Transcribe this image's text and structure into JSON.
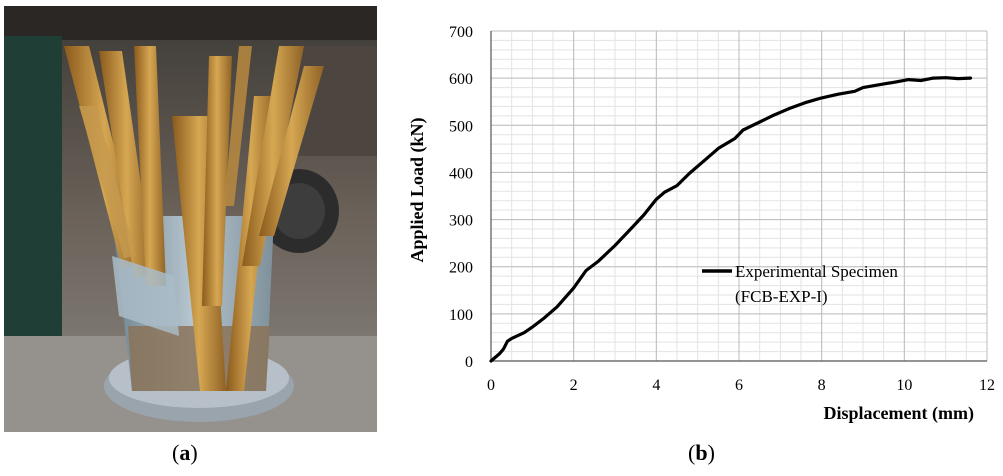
{
  "panels": {
    "a": {
      "caption_open": "(",
      "caption_letter": "a",
      "caption_close": ")"
    },
    "b": {
      "caption_open": "(",
      "caption_letter": "b",
      "caption_close": ")"
    }
  },
  "chart_data": {
    "type": "line",
    "title": "",
    "xlabel": "Displacement (mm)",
    "ylabel": "Applied Load (kN)",
    "xlim": [
      0,
      12
    ],
    "ylim": [
      0,
      700
    ],
    "xticks": [
      0,
      2,
      4,
      6,
      8,
      10,
      12
    ],
    "yticks": [
      0,
      100,
      200,
      300,
      400,
      500,
      600,
      700
    ],
    "grid": true,
    "legend_position": "center-right",
    "legend": [
      "Experimental Specimen",
      "(FCB-EXP-I)"
    ],
    "series": [
      {
        "name": "Experimental Specimen (FCB-EXP-I)",
        "color": "#000000",
        "x": [
          0,
          0.2,
          0.3,
          0.4,
          0.5,
          0.8,
          1.0,
          1.3,
          1.6,
          2.0,
          2.3,
          2.6,
          3.0,
          3.4,
          3.7,
          4.0,
          4.2,
          4.5,
          4.8,
          5.2,
          5.5,
          5.9,
          6.1,
          6.5,
          6.8,
          7.2,
          7.6,
          8.0,
          8.4,
          8.8,
          9.0,
          9.4,
          9.8,
          10.1,
          10.4,
          10.7,
          11.0,
          11.3,
          11.6
        ],
        "y": [
          0,
          15,
          25,
          42,
          48,
          60,
          72,
          92,
          115,
          155,
          192,
          212,
          245,
          282,
          310,
          343,
          358,
          372,
          398,
          428,
          451,
          472,
          490,
          507,
          520,
          535,
          548,
          558,
          566,
          572,
          580,
          586,
          592,
          597,
          595,
          600,
          601,
          599,
          600
        ]
      }
    ]
  }
}
